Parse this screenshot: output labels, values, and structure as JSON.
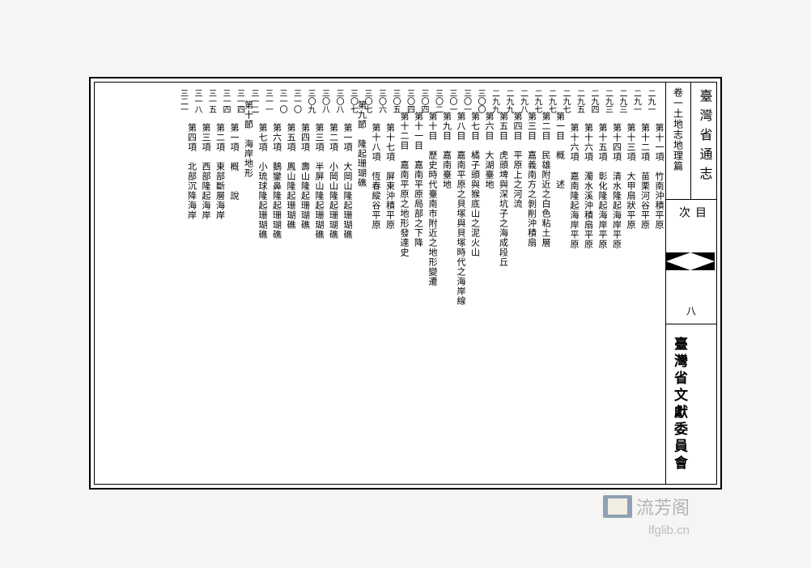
{
  "header": {
    "main_title": "臺灣省通志",
    "sub_title": "卷一土地志地理篇",
    "toc_label": "目　次",
    "page_number": "八",
    "publisher": "臺灣省文獻委員會"
  },
  "watermark": {
    "text": "流芳阁",
    "url": "lfglib.cn"
  },
  "dots": "⋮⋮⋮⋮⋮⋮⋮⋮⋮⋮⋮⋮⋮⋮⋮⋮⋮⋮⋮⋮⋮⋮⋮⋮⋮⋮⋮⋮⋮⋮⋮⋮",
  "toc_entries": [
    {
      "indent": 3,
      "label": "第十一項　竹南沖積平原",
      "page": "二九一"
    },
    {
      "indent": 3,
      "label": "第十二項　苗栗河谷平原",
      "page": "二九一"
    },
    {
      "indent": 3,
      "label": "第十三項　大甲扇狀平原",
      "page": "二九三"
    },
    {
      "indent": 3,
      "label": "第十四項　清水隆起海岸平原",
      "page": "二九三"
    },
    {
      "indent": 3,
      "label": "第十五項　彰化隆起海岸平原",
      "page": "二九四"
    },
    {
      "indent": 3,
      "label": "第十六項　濁水溪沖積扇平原",
      "page": "二九五"
    },
    {
      "indent": 3,
      "label": "第十六項　嘉南隆起海岸平原",
      "page": "二九七"
    },
    {
      "indent": 2,
      "label": "第一目　概　　述",
      "page": "二九七"
    },
    {
      "indent": 2,
      "label": "第二目　民雄附近之白色粘土層",
      "page": "二九七"
    },
    {
      "indent": 2,
      "label": "第三目　嘉義南方之剝削沖積扇",
      "page": "二九八"
    },
    {
      "indent": 2,
      "label": "第四目　平原上之河流",
      "page": "二九九"
    },
    {
      "indent": 2,
      "label": "第五目　虎頭埤與深坑子之海成段丘",
      "page": "二九九"
    },
    {
      "indent": 2,
      "label": "第六目　大湖臺地",
      "page": "三〇〇"
    },
    {
      "indent": 2,
      "label": "第七目　橘子頭與猴底山之泥火山",
      "page": "三〇一"
    },
    {
      "indent": 2,
      "label": "第八目　嘉南平原之貝塚與貝塚時代之海岸線",
      "page": "三〇一"
    },
    {
      "indent": 2,
      "label": "第九目　嘉南臺地",
      "page": "三〇二"
    },
    {
      "indent": 2,
      "label": "第十目　歷史時代臺南市附近之地形變遷",
      "page": "三〇四"
    },
    {
      "indent": 2,
      "label": "第十一目　嘉南平原局部之下降",
      "page": "三〇四"
    },
    {
      "indent": 2,
      "label": "第十二目　嘉南平原之地形發達史",
      "page": "三〇五"
    },
    {
      "indent": 3,
      "label": "第十七項　屏東沖積平原",
      "page": "三〇六"
    },
    {
      "indent": 3,
      "label": "第十八項　恆春縱谷平原",
      "page": "三〇七"
    },
    {
      "indent": 1,
      "label": "第九節　隆起珊瑚礁",
      "page": "三〇七"
    },
    {
      "indent": 3,
      "label": "第一項　大岡山隆起珊瑚礁",
      "page": "三〇八"
    },
    {
      "indent": 3,
      "label": "第二項　小岡山隆起珊瑚礁",
      "page": "三〇八"
    },
    {
      "indent": 3,
      "label": "第三項　半屏山隆起珊瑚礁",
      "page": "三〇九"
    },
    {
      "indent": 3,
      "label": "第四項　壽山隆起珊瑚礁",
      "page": "三一〇"
    },
    {
      "indent": 3,
      "label": "第五項　鳳山隆起珊瑚礁",
      "page": "三一〇"
    },
    {
      "indent": 3,
      "label": "第六項　鵝鑾鼻隆起珊瑚礁",
      "page": "三一一"
    },
    {
      "indent": 3,
      "label": "第七項　小琉球隆起珊瑚礁",
      "page": "三一二"
    },
    {
      "indent": 1,
      "label": "第十節　海岸地形",
      "page": "三一四"
    },
    {
      "indent": 3,
      "label": "第一項　概　　說",
      "page": "三一四"
    },
    {
      "indent": 3,
      "label": "第二項　東部斷層海岸",
      "page": "三一五"
    },
    {
      "indent": 3,
      "label": "第三項　西部隆起海岸",
      "page": "三一八"
    },
    {
      "indent": 3,
      "label": "第四項　北部沉降海岸",
      "page": "三二一"
    }
  ]
}
